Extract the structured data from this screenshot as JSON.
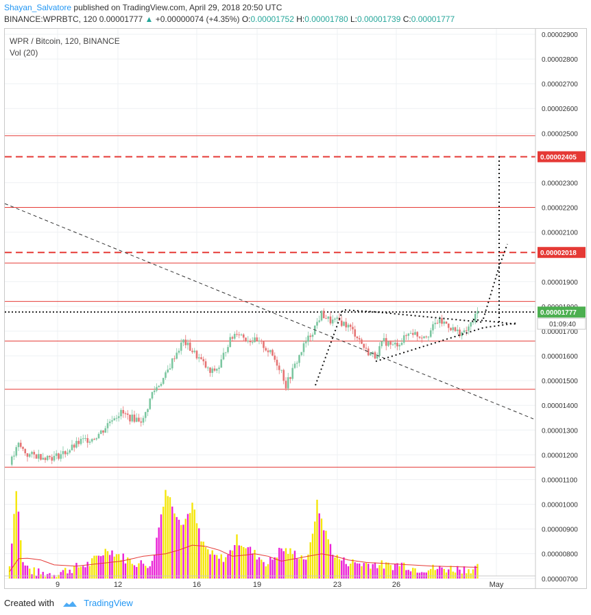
{
  "header": {
    "author": "Shayan_Salvatore",
    "published": "published on TradingView.com, April 29, 2018 20:50 UTC",
    "symbol_info": "BINANCE:WPRBTC, 120",
    "last_price": "0.00001777",
    "change": "+0.00000074 (+4.35%)",
    "open_label": "O:",
    "open": "0.00001752",
    "high_label": "H:",
    "high": "0.00001780",
    "low_label": "L:",
    "low": "0.00001739",
    "close_label": "C:",
    "close": "0.00001777"
  },
  "legend": {
    "title": "WPR / Bitcoin, 120, BINANCE",
    "volume": "Vol (20)"
  },
  "footer": {
    "created_with": "Created with",
    "brand": "TradingView"
  },
  "colors": {
    "up": "#26a69a",
    "down": "#ef5350",
    "candle_up": "#7bc6a0",
    "candle_down": "#e57373",
    "level_line": "#e53935",
    "vol_yellow": "#f5e60a",
    "vol_magenta": "#ea22d6",
    "vol_ma": "#e53935",
    "price_badge": "#4caf50",
    "level_badge": "#e53935"
  },
  "chart_data": {
    "type": "candlestick",
    "x_ticks": [
      "9",
      "12",
      "16",
      "19",
      "23",
      "26",
      "May"
    ],
    "y_ticks": [
      "0.00002900",
      "0.00002800",
      "0.00002700",
      "0.00002600",
      "0.00002500",
      "0.00002405",
      "0.00002300",
      "0.00002200",
      "0.00002100",
      "0.00002018",
      "0.00001900",
      "0.00001800",
      "0.00001777",
      "0.00001700",
      "0.00001600",
      "0.00001500",
      "0.00001400",
      "0.00001300",
      "0.00001200",
      "0.00001100",
      "0.00001000",
      "0.00000900",
      "0.00000800",
      "0.00000700"
    ],
    "y_tick_values": [
      2900,
      2800,
      2700,
      2600,
      2500,
      2300,
      2200,
      2100,
      1900,
      1800,
      1700,
      1600,
      1500,
      1400,
      1300,
      1200,
      1100,
      1000,
      900,
      800,
      700
    ],
    "ylim_price": [
      1100,
      2950
    ],
    "horizontal_levels_solid": [
      2490,
      2200,
      1975,
      1820,
      1660,
      1465,
      1150
    ],
    "horizontal_levels_dashed": [
      2405,
      2018
    ],
    "current_price_line": 1777,
    "badges": {
      "level_1": "0.00002405",
      "level_2": "0.00002018",
      "current": "0.00001777",
      "countdown": "01:09:40"
    },
    "price_path": [
      [
        0,
        1160
      ],
      [
        4,
        1240
      ],
      [
        8,
        1200
      ],
      [
        14,
        1195
      ],
      [
        20,
        1190
      ],
      [
        26,
        1215
      ],
      [
        32,
        1255
      ],
      [
        38,
        1270
      ],
      [
        42,
        1300
      ],
      [
        46,
        1350
      ],
      [
        50,
        1370
      ],
      [
        54,
        1350
      ],
      [
        60,
        1340
      ],
      [
        64,
        1450
      ],
      [
        70,
        1520
      ],
      [
        74,
        1600
      ],
      [
        78,
        1660
      ],
      [
        82,
        1620
      ],
      [
        86,
        1580
      ],
      [
        90,
        1530
      ],
      [
        94,
        1555
      ],
      [
        98,
        1650
      ],
      [
        102,
        1700
      ],
      [
        106,
        1670
      ],
      [
        110,
        1660
      ],
      [
        114,
        1640
      ],
      [
        118,
        1600
      ],
      [
        122,
        1540
      ],
      [
        124,
        1480
      ],
      [
        128,
        1560
      ],
      [
        132,
        1640
      ],
      [
        136,
        1700
      ],
      [
        140,
        1770
      ],
      [
        144,
        1740
      ],
      [
        148,
        1740
      ],
      [
        152,
        1720
      ],
      [
        156,
        1680
      ],
      [
        160,
        1620
      ],
      [
        164,
        1600
      ],
      [
        168,
        1660
      ],
      [
        172,
        1640
      ],
      [
        176,
        1660
      ],
      [
        180,
        1700
      ],
      [
        184,
        1680
      ],
      [
        188,
        1690
      ],
      [
        192,
        1740
      ],
      [
        196,
        1730
      ],
      [
        200,
        1700
      ],
      [
        204,
        1690
      ],
      [
        208,
        1740
      ],
      [
        210,
        1777
      ]
    ],
    "volume_path": [
      [
        0,
        750
      ],
      [
        3,
        1070
      ],
      [
        6,
        760
      ],
      [
        10,
        730
      ],
      [
        14,
        720
      ],
      [
        20,
        720
      ],
      [
        28,
        740
      ],
      [
        36,
        760
      ],
      [
        40,
        790
      ],
      [
        44,
        820
      ],
      [
        48,
        800
      ],
      [
        52,
        780
      ],
      [
        58,
        760
      ],
      [
        64,
        760
      ],
      [
        70,
        1060
      ],
      [
        74,
        980
      ],
      [
        78,
        920
      ],
      [
        82,
        1000
      ],
      [
        86,
        850
      ],
      [
        90,
        800
      ],
      [
        94,
        780
      ],
      [
        98,
        790
      ],
      [
        102,
        860
      ],
      [
        106,
        830
      ],
      [
        110,
        800
      ],
      [
        116,
        760
      ],
      [
        122,
        820
      ],
      [
        128,
        800
      ],
      [
        134,
        780
      ],
      [
        138,
        1000
      ],
      [
        142,
        880
      ],
      [
        146,
        790
      ],
      [
        150,
        770
      ],
      [
        158,
        760
      ],
      [
        164,
        760
      ],
      [
        170,
        750
      ],
      [
        176,
        760
      ],
      [
        182,
        740
      ],
      [
        190,
        740
      ],
      [
        200,
        740
      ],
      [
        210,
        740
      ]
    ],
    "volume_ma_path": [
      [
        0,
        728
      ],
      [
        4,
        780
      ],
      [
        8,
        782
      ],
      [
        14,
        775
      ],
      [
        20,
        755
      ],
      [
        30,
        750
      ],
      [
        40,
        760
      ],
      [
        50,
        770
      ],
      [
        60,
        790
      ],
      [
        70,
        800
      ],
      [
        76,
        815
      ],
      [
        82,
        835
      ],
      [
        88,
        830
      ],
      [
        94,
        815
      ],
      [
        100,
        790
      ],
      [
        106,
        795
      ],
      [
        110,
        800
      ],
      [
        116,
        790
      ],
      [
        122,
        770
      ],
      [
        128,
        780
      ],
      [
        134,
        790
      ],
      [
        140,
        800
      ],
      [
        146,
        790
      ],
      [
        152,
        775
      ],
      [
        160,
        765
      ],
      [
        170,
        760
      ],
      [
        180,
        755
      ],
      [
        190,
        750
      ],
      [
        200,
        748
      ],
      [
        210,
        745
      ]
    ]
  }
}
